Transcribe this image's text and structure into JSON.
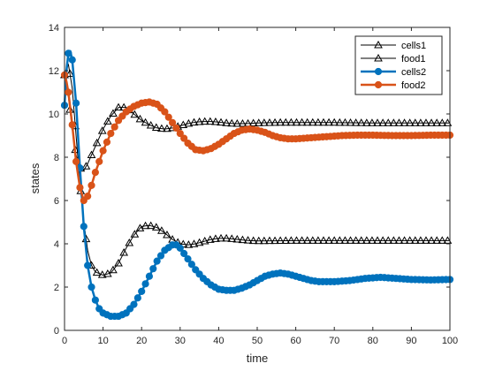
{
  "chart_data": {
    "type": "line",
    "title": "",
    "xlabel": "time",
    "ylabel": "states",
    "xlim": [
      0,
      100
    ],
    "ylim": [
      0,
      14
    ],
    "xticks": [
      0,
      10,
      20,
      30,
      40,
      50,
      60,
      70,
      80,
      90,
      100
    ],
    "yticks": [
      0,
      2,
      4,
      6,
      8,
      10,
      12,
      14
    ],
    "grid": false,
    "legend_position": "top-right",
    "series": [
      {
        "name": "cells1",
        "color": "#000000",
        "marker": "triangle",
        "points": [
          [
            0,
            11.8
          ],
          [
            1,
            12.3
          ],
          [
            2,
            11.2
          ],
          [
            3,
            9.0
          ],
          [
            4,
            6.8
          ],
          [
            5,
            5.0
          ],
          [
            6,
            3.7
          ],
          [
            7,
            3.0
          ],
          [
            8,
            2.7
          ],
          [
            10,
            2.55
          ],
          [
            12,
            2.65
          ],
          [
            14,
            3.1
          ],
          [
            16,
            3.8
          ],
          [
            18,
            4.4
          ],
          [
            20,
            4.8
          ],
          [
            22,
            4.85
          ],
          [
            24,
            4.75
          ],
          [
            26,
            4.5
          ],
          [
            28,
            4.2
          ],
          [
            30,
            4.0
          ],
          [
            32,
            3.95
          ],
          [
            34,
            4.0
          ],
          [
            36,
            4.1
          ],
          [
            38,
            4.2
          ],
          [
            40,
            4.25
          ],
          [
            42,
            4.25
          ],
          [
            44,
            4.22
          ],
          [
            46,
            4.18
          ],
          [
            48,
            4.15
          ],
          [
            50,
            4.13
          ],
          [
            55,
            4.14
          ],
          [
            60,
            4.15
          ],
          [
            65,
            4.15
          ],
          [
            70,
            4.15
          ],
          [
            80,
            4.15
          ],
          [
            90,
            4.15
          ],
          [
            100,
            4.15
          ]
        ]
      },
      {
        "name": "food1",
        "color": "#000000",
        "marker": "triangle",
        "points": [
          [
            0,
            11.8
          ],
          [
            1,
            10.8
          ],
          [
            2,
            9.3
          ],
          [
            3,
            8.1
          ],
          [
            4,
            7.5
          ],
          [
            5,
            7.4
          ],
          [
            6,
            7.7
          ],
          [
            8,
            8.5
          ],
          [
            10,
            9.3
          ],
          [
            12,
            9.9
          ],
          [
            14,
            10.3
          ],
          [
            16,
            10.3
          ],
          [
            18,
            10.0
          ],
          [
            20,
            9.7
          ],
          [
            22,
            9.5
          ],
          [
            24,
            9.35
          ],
          [
            26,
            9.3
          ],
          [
            28,
            9.35
          ],
          [
            30,
            9.45
          ],
          [
            32,
            9.55
          ],
          [
            34,
            9.62
          ],
          [
            36,
            9.65
          ],
          [
            38,
            9.65
          ],
          [
            40,
            9.62
          ],
          [
            42,
            9.58
          ],
          [
            44,
            9.55
          ],
          [
            46,
            9.55
          ],
          [
            48,
            9.56
          ],
          [
            50,
            9.58
          ],
          [
            55,
            9.6
          ],
          [
            60,
            9.6
          ],
          [
            65,
            9.6
          ],
          [
            70,
            9.6
          ],
          [
            80,
            9.58
          ],
          [
            90,
            9.58
          ],
          [
            100,
            9.58
          ]
        ]
      },
      {
        "name": "cells2",
        "color": "#0072BD",
        "marker": "circle",
        "points": [
          [
            0,
            10.4
          ],
          [
            0.5,
            12.0
          ],
          [
            1,
            12.8
          ],
          [
            1.5,
            12.9
          ],
          [
            2,
            12.5
          ],
          [
            3,
            10.5
          ],
          [
            4,
            7.5
          ],
          [
            5,
            4.8
          ],
          [
            6,
            3.0
          ],
          [
            7,
            2.0
          ],
          [
            8,
            1.4
          ],
          [
            9,
            1.0
          ],
          [
            10,
            0.8
          ],
          [
            12,
            0.65
          ],
          [
            14,
            0.65
          ],
          [
            16,
            0.8
          ],
          [
            18,
            1.2
          ],
          [
            20,
            1.8
          ],
          [
            22,
            2.5
          ],
          [
            24,
            3.2
          ],
          [
            26,
            3.7
          ],
          [
            28,
            3.95
          ],
          [
            29,
            3.95
          ],
          [
            30,
            3.8
          ],
          [
            32,
            3.3
          ],
          [
            34,
            2.8
          ],
          [
            36,
            2.4
          ],
          [
            38,
            2.1
          ],
          [
            40,
            1.9
          ],
          [
            42,
            1.85
          ],
          [
            44,
            1.85
          ],
          [
            46,
            1.95
          ],
          [
            48,
            2.1
          ],
          [
            50,
            2.3
          ],
          [
            52,
            2.5
          ],
          [
            54,
            2.6
          ],
          [
            56,
            2.65
          ],
          [
            58,
            2.6
          ],
          [
            60,
            2.5
          ],
          [
            62,
            2.4
          ],
          [
            64,
            2.3
          ],
          [
            66,
            2.25
          ],
          [
            70,
            2.25
          ],
          [
            74,
            2.3
          ],
          [
            78,
            2.4
          ],
          [
            82,
            2.45
          ],
          [
            86,
            2.4
          ],
          [
            90,
            2.35
          ],
          [
            95,
            2.33
          ],
          [
            100,
            2.35
          ]
        ]
      },
      {
        "name": "food2",
        "color": "#D95319",
        "marker": "circle",
        "points": [
          [
            0,
            11.8
          ],
          [
            0.5,
            11.5
          ],
          [
            1,
            11.0
          ],
          [
            2,
            9.5
          ],
          [
            3,
            7.8
          ],
          [
            4,
            6.6
          ],
          [
            5,
            6.0
          ],
          [
            6,
            6.2
          ],
          [
            7,
            6.7
          ],
          [
            8,
            7.3
          ],
          [
            10,
            8.3
          ],
          [
            12,
            9.1
          ],
          [
            14,
            9.7
          ],
          [
            16,
            10.1
          ],
          [
            18,
            10.35
          ],
          [
            20,
            10.5
          ],
          [
            22,
            10.55
          ],
          [
            24,
            10.45
          ],
          [
            26,
            10.1
          ],
          [
            28,
            9.6
          ],
          [
            30,
            9.1
          ],
          [
            32,
            8.65
          ],
          [
            34,
            8.35
          ],
          [
            36,
            8.3
          ],
          [
            38,
            8.4
          ],
          [
            40,
            8.6
          ],
          [
            42,
            8.85
          ],
          [
            44,
            9.1
          ],
          [
            46,
            9.25
          ],
          [
            48,
            9.3
          ],
          [
            50,
            9.25
          ],
          [
            52,
            9.15
          ],
          [
            54,
            9.0
          ],
          [
            56,
            8.9
          ],
          [
            58,
            8.85
          ],
          [
            60,
            8.85
          ],
          [
            64,
            8.9
          ],
          [
            68,
            8.95
          ],
          [
            72,
            9.0
          ],
          [
            76,
            9.02
          ],
          [
            80,
            9.02
          ],
          [
            85,
            9.0
          ],
          [
            90,
            9.0
          ],
          [
            95,
            9.02
          ],
          [
            100,
            9.02
          ]
        ]
      }
    ]
  }
}
